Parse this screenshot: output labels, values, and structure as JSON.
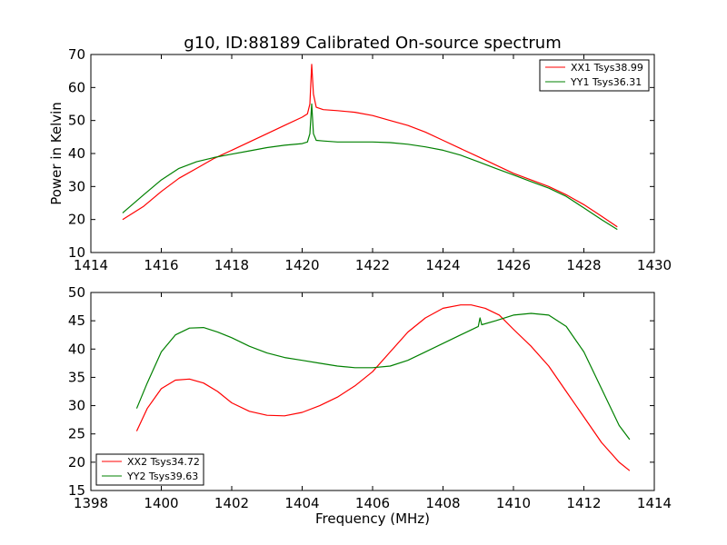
{
  "chart_data": [
    {
      "type": "line",
      "title": "g10, ID:88189 Calibrated On-source spectrum",
      "xlabel": "",
      "ylabel": "Power in Kelvin",
      "xlim": [
        1414,
        1430
      ],
      "ylim": [
        10,
        70
      ],
      "xticks": [
        1414,
        1416,
        1418,
        1420,
        1422,
        1424,
        1426,
        1428,
        1430
      ],
      "yticks": [
        10,
        20,
        30,
        40,
        50,
        60,
        70
      ],
      "legend_position": "top-right",
      "grid": false,
      "series": [
        {
          "name": "XX1 Tsys38.99",
          "color": "#ff0000",
          "x": [
            1414.9,
            1415.5,
            1416.0,
            1416.5,
            1417.0,
            1417.5,
            1418.0,
            1418.5,
            1419.0,
            1419.5,
            1420.0,
            1420.15,
            1420.22,
            1420.27,
            1420.32,
            1420.4,
            1420.6,
            1421.0,
            1421.5,
            1422.0,
            1422.5,
            1423.0,
            1423.5,
            1424.0,
            1424.5,
            1425.0,
            1425.5,
            1426.0,
            1426.5,
            1427.0,
            1427.5,
            1428.0,
            1428.5,
            1428.95
          ],
          "y": [
            20,
            24,
            28.5,
            32.5,
            35.5,
            38.5,
            41,
            43.5,
            46,
            48.5,
            51,
            52,
            55,
            67,
            58,
            54,
            53.3,
            53,
            52.5,
            51.5,
            50,
            48.5,
            46.5,
            44,
            41.5,
            39,
            36.5,
            34,
            32,
            30,
            27.5,
            24.5,
            21,
            17.8
          ]
        },
        {
          "name": "YY1 Tsys36.31",
          "color": "#008000",
          "x": [
            1414.9,
            1415.5,
            1416.0,
            1416.5,
            1417.0,
            1417.5,
            1418.0,
            1418.5,
            1419.0,
            1419.5,
            1420.0,
            1420.15,
            1420.22,
            1420.27,
            1420.32,
            1420.4,
            1420.6,
            1421.0,
            1421.5,
            1422.0,
            1422.5,
            1423.0,
            1423.5,
            1424.0,
            1424.5,
            1425.0,
            1425.5,
            1426.0,
            1426.5,
            1427.0,
            1427.5,
            1428.0,
            1428.5,
            1428.95
          ],
          "y": [
            22,
            27.5,
            32,
            35.5,
            37.5,
            38.8,
            39.8,
            40.8,
            41.8,
            42.5,
            43,
            43.5,
            46,
            55,
            46,
            44,
            43.8,
            43.5,
            43.5,
            43.5,
            43.3,
            42.8,
            42,
            41,
            39.5,
            37.5,
            35.5,
            33.5,
            31.5,
            29.5,
            27,
            23.5,
            20,
            17
          ]
        }
      ]
    },
    {
      "type": "line",
      "title": "",
      "xlabel": "Frequency (MHz)",
      "ylabel": "",
      "xlim": [
        1398,
        1414
      ],
      "ylim": [
        15,
        50
      ],
      "xticks": [
        1398,
        1400,
        1402,
        1404,
        1406,
        1408,
        1410,
        1412,
        1414
      ],
      "yticks": [
        15,
        20,
        25,
        30,
        35,
        40,
        45,
        50
      ],
      "legend_position": "bottom-left",
      "grid": false,
      "series": [
        {
          "name": "XX2 Tsys34.72",
          "color": "#ff0000",
          "x": [
            1399.3,
            1399.6,
            1400.0,
            1400.4,
            1400.8,
            1401.2,
            1401.6,
            1402.0,
            1402.5,
            1403.0,
            1403.5,
            1404.0,
            1404.5,
            1405.0,
            1405.5,
            1406.0,
            1406.5,
            1407.0,
            1407.5,
            1408.0,
            1408.5,
            1408.8,
            1409.2,
            1409.6,
            1410.0,
            1410.5,
            1411.0,
            1411.5,
            1412.0,
            1412.5,
            1413.0,
            1413.3
          ],
          "y": [
            25.5,
            29.5,
            33,
            34.5,
            34.7,
            34,
            32.5,
            30.5,
            29,
            28.3,
            28.2,
            28.8,
            30,
            31.5,
            33.5,
            36,
            39.5,
            43,
            45.5,
            47.2,
            47.8,
            47.8,
            47.2,
            46,
            43.5,
            40.5,
            37,
            32.5,
            28,
            23.5,
            20,
            18.5
          ]
        },
        {
          "name": "YY2 Tsys39.63",
          "color": "#008000",
          "x": [
            1399.3,
            1399.6,
            1400.0,
            1400.4,
            1400.8,
            1401.2,
            1401.6,
            1402.0,
            1402.5,
            1403.0,
            1403.5,
            1404.0,
            1404.5,
            1405.0,
            1405.5,
            1406.0,
            1406.5,
            1407.0,
            1407.5,
            1408.0,
            1408.5,
            1409.0,
            1409.05,
            1409.1,
            1409.5,
            1410.0,
            1410.5,
            1411.0,
            1411.5,
            1412.0,
            1412.5,
            1413.0,
            1413.3
          ],
          "y": [
            29.5,
            34,
            39.5,
            42.5,
            43.7,
            43.8,
            43,
            42,
            40.5,
            39.3,
            38.5,
            38,
            37.5,
            37,
            36.7,
            36.7,
            37,
            38,
            39.5,
            41,
            42.5,
            44,
            45.5,
            44.3,
            45,
            46,
            46.3,
            46,
            44,
            39.5,
            33,
            26.5,
            24
          ]
        }
      ]
    }
  ]
}
